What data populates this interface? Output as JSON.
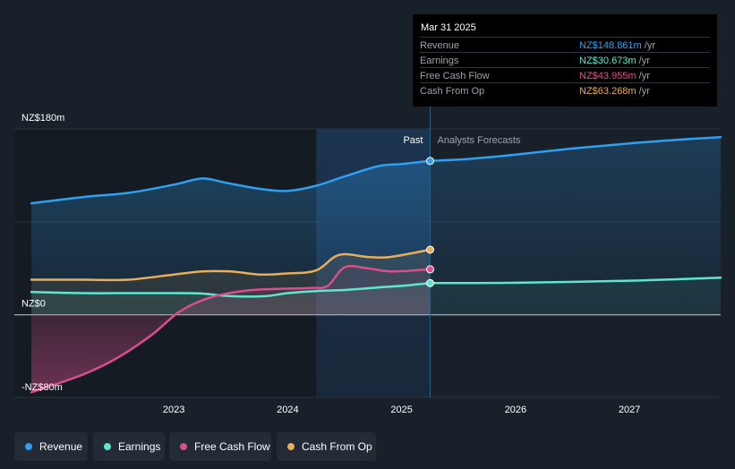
{
  "tooltip": {
    "date": "Mar 31 2025",
    "rows": [
      {
        "label": "Revenue",
        "value": "NZ$148.861m",
        "unit": "/yr",
        "color": "#2fa0f0"
      },
      {
        "label": "Earnings",
        "value": "NZ$30.673m",
        "unit": "/yr",
        "color": "#5ee6cf"
      },
      {
        "label": "Free Cash Flow",
        "value": "NZ$43.955m",
        "unit": "/yr",
        "color": "#d94f8c"
      },
      {
        "label": "Cash From Op",
        "value": "NZ$63.268m",
        "unit": "/yr",
        "color": "#e8ae5a"
      }
    ]
  },
  "legend": [
    {
      "label": "Revenue",
      "color": "#2fa0f0"
    },
    {
      "label": "Earnings",
      "color": "#5ee6cf"
    },
    {
      "label": "Free Cash Flow",
      "color": "#d94f8c"
    },
    {
      "label": "Cash From Op",
      "color": "#e8ae5a"
    }
  ],
  "chart_data": {
    "type": "line",
    "title": "",
    "xlabel": "",
    "ylabel": "",
    "ylim": [
      -80,
      180
    ],
    "xlim": [
      2021.6,
      2027.8
    ],
    "y_tick_labels": [
      {
        "value": 180,
        "label": "NZ$180m"
      },
      {
        "value": 0,
        "label": "NZ$0"
      },
      {
        "value": -80,
        "label": "-NZ$80m"
      }
    ],
    "x_tick_labels": [
      {
        "value": 2023,
        "label": "2023"
      },
      {
        "value": 2024,
        "label": "2024"
      },
      {
        "value": 2025,
        "label": "2025"
      },
      {
        "value": 2026,
        "label": "2026"
      },
      {
        "value": 2027,
        "label": "2027"
      }
    ],
    "divider_x": 2025.25,
    "forecast_start_x": 2024.25,
    "past_label": "Past",
    "forecast_label": "Analysts Forecasts",
    "series": [
      {
        "name": "Revenue",
        "color": "#2fa0f0",
        "past": [
          [
            2021.75,
            108
          ],
          [
            2022.2,
            114
          ],
          [
            2022.6,
            118
          ],
          [
            2023.0,
            126
          ],
          [
            2023.25,
            132
          ],
          [
            2023.45,
            128
          ],
          [
            2023.75,
            122
          ],
          [
            2024.0,
            120
          ],
          [
            2024.25,
            125
          ],
          [
            2024.5,
            134
          ],
          [
            2024.8,
            144
          ],
          [
            2025.0,
            146
          ],
          [
            2025.25,
            149
          ]
        ],
        "forecast": [
          [
            2025.25,
            149
          ],
          [
            2025.6,
            151
          ],
          [
            2026.0,
            155
          ],
          [
            2026.5,
            161
          ],
          [
            2027.0,
            166
          ],
          [
            2027.5,
            170
          ],
          [
            2027.8,
            172
          ]
        ]
      },
      {
        "name": "Earnings",
        "color": "#5ee6cf",
        "past": [
          [
            2021.75,
            22
          ],
          [
            2022.2,
            21
          ],
          [
            2022.6,
            21
          ],
          [
            2023.0,
            21
          ],
          [
            2023.25,
            20.5
          ],
          [
            2023.5,
            18
          ],
          [
            2023.8,
            18
          ],
          [
            2024.0,
            21
          ],
          [
            2024.25,
            23
          ],
          [
            2024.5,
            24
          ],
          [
            2024.8,
            26.5
          ],
          [
            2025.0,
            28
          ],
          [
            2025.25,
            30.7
          ]
        ],
        "forecast": [
          [
            2025.25,
            30.7
          ],
          [
            2026.0,
            31
          ],
          [
            2027.0,
            33
          ],
          [
            2027.8,
            36
          ]
        ]
      },
      {
        "name": "Free Cash Flow",
        "color": "#d94f8c",
        "past": [
          [
            2021.75,
            -75
          ],
          [
            2022.2,
            -58
          ],
          [
            2022.5,
            -42
          ],
          [
            2022.8,
            -20
          ],
          [
            2023.05,
            3
          ],
          [
            2023.3,
            16
          ],
          [
            2023.6,
            23
          ],
          [
            2023.9,
            25
          ],
          [
            2024.2,
            26
          ],
          [
            2024.35,
            28
          ],
          [
            2024.5,
            46
          ],
          [
            2024.7,
            45
          ],
          [
            2024.9,
            42
          ],
          [
            2025.25,
            44
          ]
        ]
      },
      {
        "name": "Cash From Op",
        "color": "#e8ae5a",
        "past": [
          [
            2021.75,
            34
          ],
          [
            2022.2,
            34
          ],
          [
            2022.6,
            34
          ],
          [
            2023.0,
            39
          ],
          [
            2023.25,
            42
          ],
          [
            2023.5,
            42
          ],
          [
            2023.75,
            39
          ],
          [
            2024.0,
            40
          ],
          [
            2024.25,
            43
          ],
          [
            2024.45,
            58
          ],
          [
            2024.7,
            56
          ],
          [
            2024.9,
            56
          ],
          [
            2025.25,
            63
          ]
        ]
      }
    ]
  }
}
